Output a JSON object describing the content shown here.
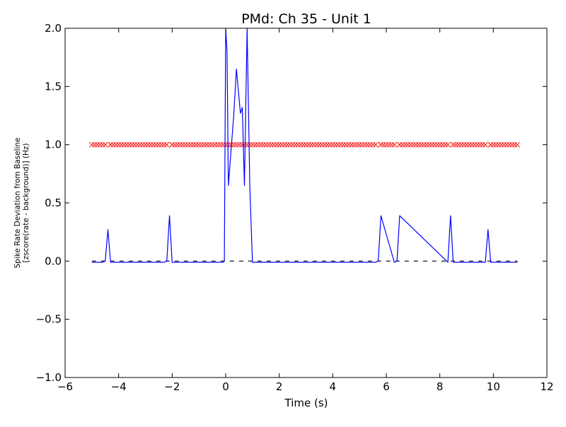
{
  "chart_data": {
    "type": "line",
    "title": "PMd: Ch 35 - Unit 1",
    "xlabel": "Time (s)",
    "ylabel_line1": "Spike Rate Deviation from Baseline",
    "ylabel_line2": "[zscore(rate - background)] (Hz)",
    "xlim": [
      -6,
      12
    ],
    "ylim": [
      -1.0,
      2.0
    ],
    "x_ticks": [
      -6,
      -4,
      -2,
      0,
      2,
      4,
      6,
      8,
      10,
      12
    ],
    "x_tick_labels": [
      "−6",
      "−4",
      "−2",
      "0",
      "2",
      "4",
      "6",
      "8",
      "10",
      "12"
    ],
    "y_ticks": [
      -1.0,
      -0.5,
      0.0,
      0.5,
      1.0,
      1.5,
      2.0
    ],
    "y_tick_labels": [
      "−1.0",
      "−0.5",
      "0.0",
      "0.5",
      "1.0",
      "1.5",
      "2.0"
    ],
    "grid": false,
    "colors": {
      "rate": "#0000ff",
      "baseline": "#000000",
      "markers": "#ff0000"
    },
    "rate_series": {
      "x": [
        -5.0,
        -4.6,
        -4.5,
        -4.4,
        -4.3,
        -2.3,
        -2.2,
        -2.1,
        -2.0,
        -0.1,
        -0.05,
        0.0,
        0.05,
        0.1,
        0.3,
        0.4,
        0.55,
        0.62,
        0.7,
        0.8,
        0.9,
        1.0,
        5.6,
        5.7,
        5.8,
        6.3,
        6.4,
        6.5,
        8.3,
        8.4,
        8.5,
        9.7,
        9.8,
        9.9,
        10.9
      ],
      "y": [
        -0.01,
        -0.01,
        0.0,
        0.27,
        -0.01,
        -0.01,
        0.0,
        0.39,
        -0.01,
        -0.01,
        0.0,
        2.0,
        1.8,
        0.65,
        1.25,
        1.65,
        1.27,
        1.32,
        0.65,
        2.0,
        0.65,
        -0.01,
        -0.01,
        0.0,
        0.39,
        -0.01,
        0.0,
        0.39,
        -0.01,
        0.39,
        -0.01,
        -0.01,
        0.27,
        -0.01,
        -0.01
      ]
    },
    "baseline_series": {
      "x": [
        -5.0,
        10.9
      ],
      "y": [
        0.0,
        0.0
      ]
    },
    "marker_series": {
      "x_start": -5.0,
      "x_end": 10.9,
      "step": 0.1,
      "y": 1.0,
      "open_circles_x": [
        -4.4,
        -2.1,
        0.05,
        0.45,
        0.75,
        5.7,
        6.4,
        8.4,
        9.8
      ]
    }
  }
}
